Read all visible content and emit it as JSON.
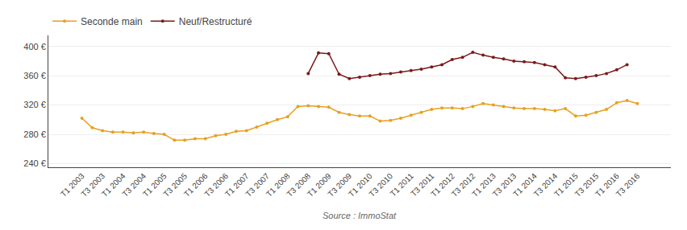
{
  "chart_data": {
    "type": "line",
    "annotations": [
      "Source : ImmoStat"
    ],
    "categories": [
      "T1 2003",
      null,
      "T3 2003",
      null,
      "T1 2004",
      null,
      "T3 2004",
      null,
      "T1 2005",
      null,
      "T3 2005",
      null,
      "T1 2006",
      null,
      "T3 2006",
      null,
      "T1 2007",
      null,
      "T3 2007",
      null,
      "T1 2008",
      null,
      "T3 2008",
      null,
      "T1 2009",
      null,
      "T3 2009",
      null,
      "T1 2010",
      null,
      "T3 2010",
      null,
      "T1 2011",
      null,
      "T3 2011",
      null,
      "T1 2012",
      null,
      "T3 2012",
      null,
      "T1 2013",
      null,
      "T3 2013",
      null,
      "T1 2014",
      null,
      "T3 2014",
      null,
      "T1 2015",
      null,
      "T3 2015",
      null,
      "T1 2016",
      null,
      "T3 2016"
    ],
    "series": [
      {
        "name": "Seconde main",
        "color": "#E8A020",
        "marker": "circle",
        "values": [
          302,
          289,
          285,
          283,
          283,
          282,
          283,
          281,
          280,
          272,
          272,
          274,
          274,
          278,
          280,
          284,
          285,
          290,
          295,
          300,
          304,
          318,
          319,
          318,
          317,
          310,
          307,
          305,
          305,
          298,
          299,
          302,
          306,
          310,
          314,
          316,
          316,
          315,
          318,
          322,
          320,
          318,
          316,
          315,
          315,
          314,
          312,
          315,
          305,
          306,
          310,
          314,
          323,
          326,
          322
        ]
      },
      {
        "name": "Neuf/Restructuré",
        "color": "#7B1A1A",
        "marker": "circle",
        "values": [
          null,
          null,
          null,
          null,
          null,
          null,
          null,
          null,
          null,
          null,
          null,
          null,
          null,
          null,
          null,
          null,
          null,
          null,
          null,
          null,
          null,
          null,
          363,
          391,
          390,
          362,
          356,
          358,
          360,
          362,
          363,
          365,
          367,
          369,
          372,
          375,
          382,
          385,
          392,
          388,
          385,
          383,
          380,
          379,
          378,
          375,
          372,
          357,
          356,
          358,
          360,
          363,
          368,
          375,
          null
        ]
      }
    ],
    "ylim": [
      235,
      415
    ],
    "yticks": [
      {
        "value": 240,
        "label": "240 €"
      },
      {
        "value": 280,
        "label": "280 €"
      },
      {
        "value": 320,
        "label": "320 €"
      },
      {
        "value": 360,
        "label": "360 €"
      },
      {
        "value": 400,
        "label": "400 €"
      }
    ],
    "grid": true,
    "legend": "top"
  }
}
